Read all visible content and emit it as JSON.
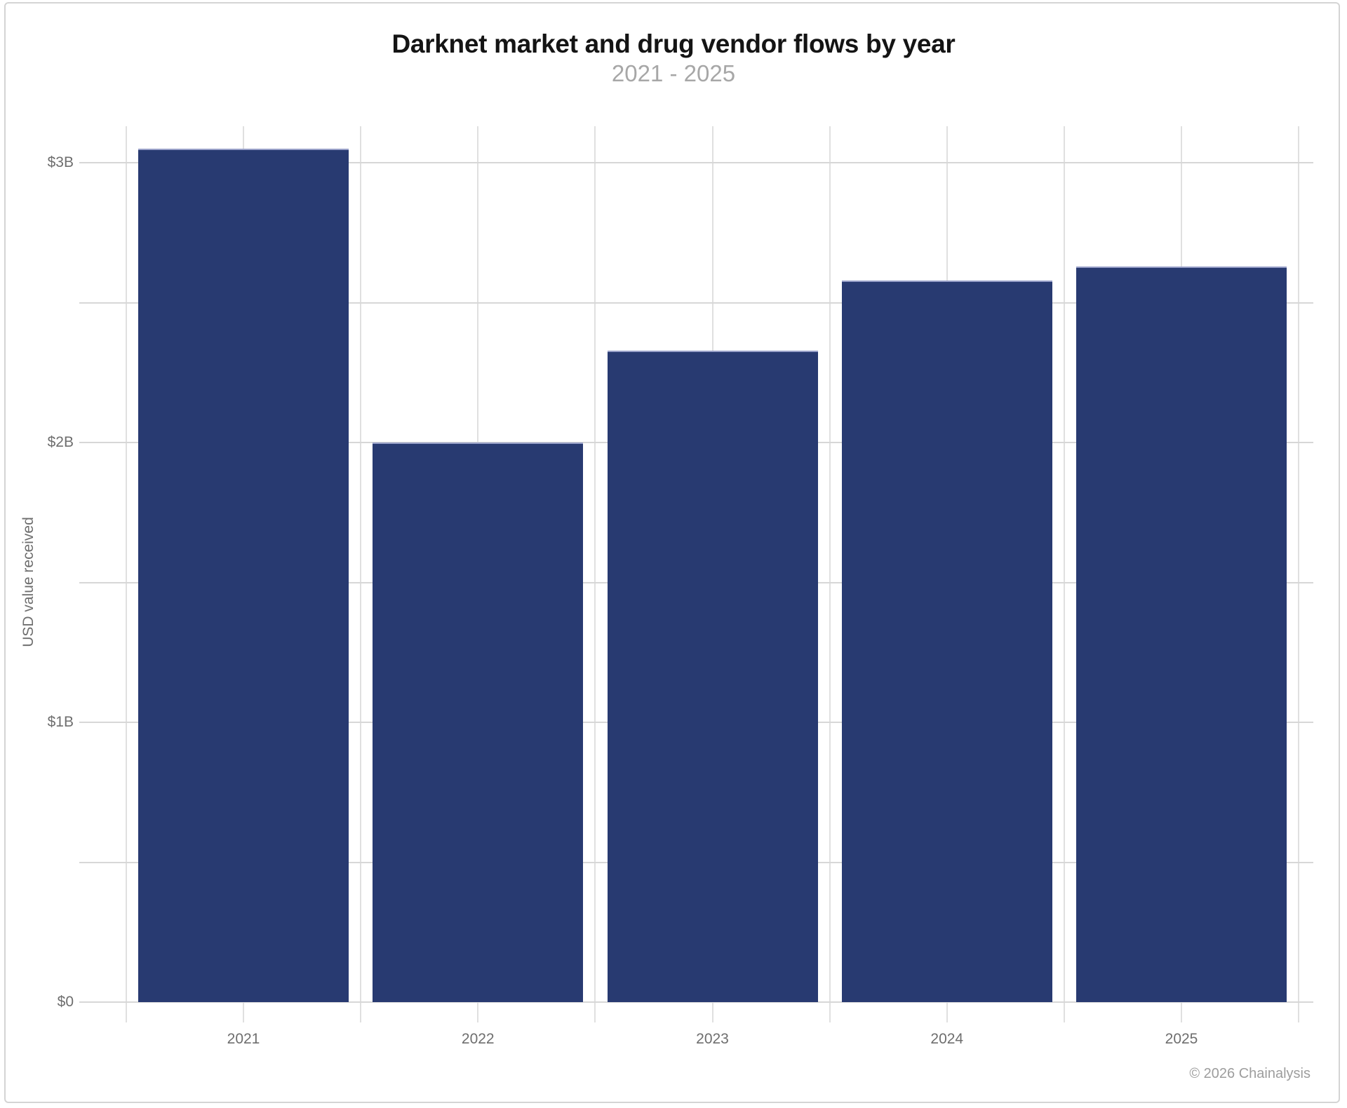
{
  "header": {
    "title": "Darknet market and drug vendor flows by year",
    "subtitle": "2021 - 2025"
  },
  "footer": {
    "copyright": "© 2026 Chainalysis"
  },
  "chart_data": {
    "type": "bar",
    "title": "Darknet market and drug vendor flows by year",
    "subtitle": "2021 - 2025",
    "categories": [
      "2021",
      "2022",
      "2023",
      "2024",
      "2025"
    ],
    "values": [
      3.05,
      2.0,
      2.33,
      2.58,
      2.63
    ],
    "unit": "USD billions",
    "xlabel": "",
    "ylabel": "USD value received",
    "ylim": [
      0,
      3.13
    ],
    "ytick_values": [
      0,
      1,
      2,
      3
    ],
    "ytick_labels": [
      "$0",
      "$1B",
      "$2B",
      "$3B"
    ],
    "gridline_step": 0.5,
    "grid": true,
    "legend": false,
    "bar_color": "#283a71",
    "bar_top_stroke": "#99a1c9",
    "gridline_color": "#d7d7d7",
    "axis_label_color": "#6e6e6e"
  }
}
